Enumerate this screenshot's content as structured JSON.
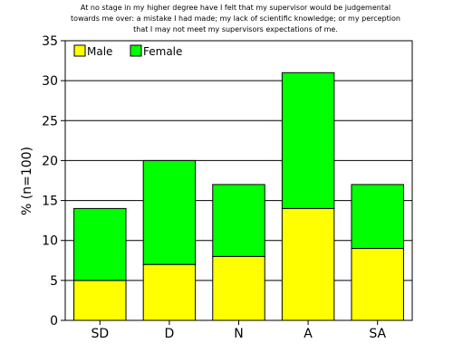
{
  "chart_data": {
    "type": "bar",
    "stacked": true,
    "title_lines": [
      "At no stage in my higher degree have I felt that my supervisor would be judgemental",
      "towards me over: a mistake I had made; my lack of scientific knowledge; or my perception",
      "that I may not meet my supervisors expectations of me."
    ],
    "xlabel": "",
    "ylabel": "% (n=100)",
    "ylim": [
      0,
      35
    ],
    "yticks": [
      0,
      5,
      10,
      15,
      20,
      25,
      30,
      35
    ],
    "grid": true,
    "legend_position": "top-left",
    "categories": [
      "SD",
      "D",
      "N",
      "A",
      "SA"
    ],
    "series": [
      {
        "name": "Male",
        "color": "#ffff00",
        "values": [
          5,
          7,
          8,
          14,
          9
        ]
      },
      {
        "name": "Female",
        "color": "#00ff00",
        "values": [
          9,
          13,
          9,
          17,
          8
        ]
      }
    ]
  }
}
